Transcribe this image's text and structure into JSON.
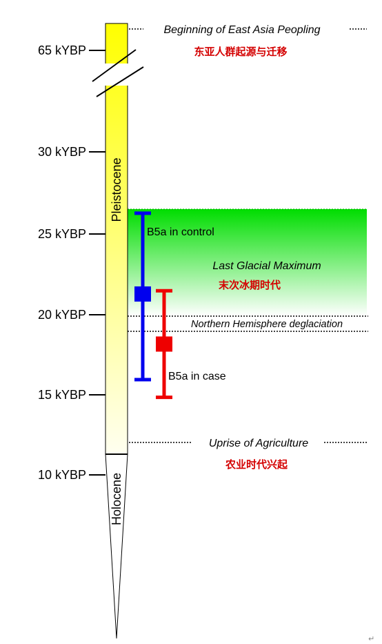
{
  "diagram": {
    "ticks": [
      {
        "label": "65 kYBP"
      },
      {
        "label": "30 kYBP"
      },
      {
        "label": "25 kYBP"
      },
      {
        "label": "20 kYBP"
      },
      {
        "label": "15 kYBP"
      },
      {
        "label": "10 kYBP"
      }
    ],
    "epochs": {
      "pleistocene": "Pleistocene",
      "holocene": "Holocene"
    },
    "annotations": {
      "peopling_en": "Beginning of East Asia Peopling",
      "peopling_zh": "东亚人群起源与迁移",
      "lgm_en": "Last Glacial Maximum",
      "lgm_zh": "末次冰期时代",
      "deglaciation_en": "Northern Hemisphere deglaciation",
      "agriculture_en": "Uprise of Agriculture",
      "agriculture_zh": "农业时代兴起"
    },
    "ranges": [
      {
        "name": "B5a in control",
        "color": "#0000ee",
        "upper_kybp": 26.2,
        "point_kybp": 21.2,
        "lower_kybp": 15.9
      },
      {
        "name": "B5a in case",
        "color": "#ee0000",
        "upper_kybp": 21.4,
        "point_kybp": 18.1,
        "lower_kybp": 14.8
      }
    ],
    "colors": {
      "pleistocene_top": "#ffff00",
      "pleistocene_bottom": "#fffff0",
      "lgm_green": "#00dd00"
    },
    "corner_mark": "↵"
  }
}
